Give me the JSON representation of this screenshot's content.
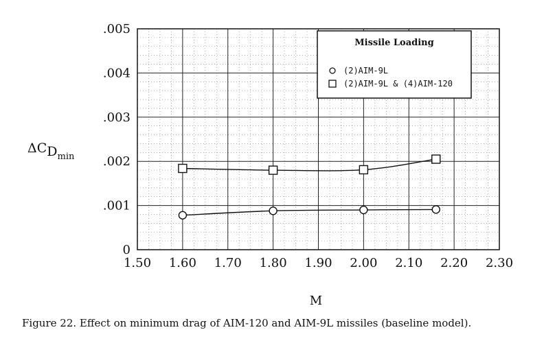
{
  "caption": "Figure 22. Effect on minimum drag of AIM-120 and AIM-9L missiles (baseline model).",
  "chart_data": {
    "type": "line",
    "xlabel": "M",
    "ylabel": {
      "main": "ΔC",
      "sub1": "D",
      "sub2": "min"
    },
    "xlim": [
      1.5,
      2.3
    ],
    "ylim": [
      0,
      0.005
    ],
    "x_ticks": [
      1.5,
      1.6,
      1.7,
      1.8,
      1.9,
      2.0,
      2.1,
      2.2,
      2.3
    ],
    "x_tick_labels": [
      "1.50",
      "1.60",
      "1.70",
      "1.80",
      "1.90",
      "2.00",
      "2.10",
      "2.20",
      "2.30"
    ],
    "y_ticks": [
      0,
      0.001,
      0.002,
      0.003,
      0.004,
      0.005
    ],
    "y_tick_labels": [
      "0",
      ".001",
      ".002",
      ".003",
      ".004",
      ".005"
    ],
    "grid": true,
    "legend": {
      "title": "Missile Loading",
      "placement": "top-right"
    },
    "series": [
      {
        "name": "(2)AIM-9L",
        "marker": "circle",
        "x": [
          1.6,
          1.8,
          2.0,
          2.16
        ],
        "y": [
          0.00078,
          0.00088,
          0.0009,
          0.00091
        ]
      },
      {
        "name": "(2)AIM-9L & (4)AIM-120",
        "marker": "square",
        "x": [
          1.6,
          1.8,
          2.0,
          2.16
        ],
        "y": [
          0.00184,
          0.0018,
          0.00181,
          0.00205
        ]
      }
    ]
  }
}
